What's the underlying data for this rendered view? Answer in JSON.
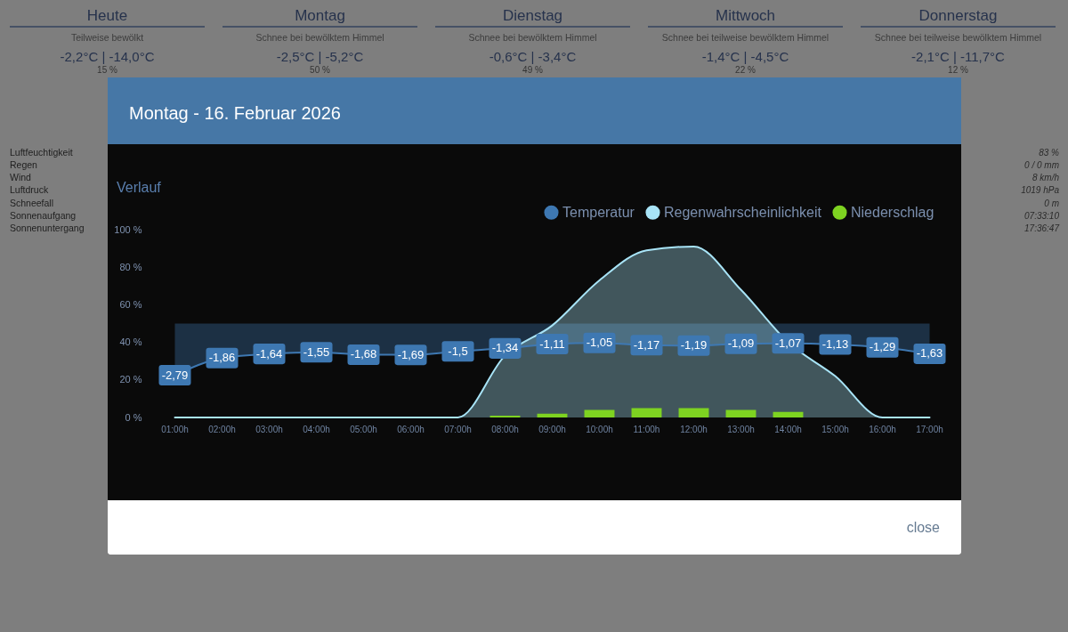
{
  "chart_data": [
    {
      "type": "other",
      "title": "Heute",
      "subtitle": "Teilweise bewölkt",
      "annotations": [
        "-2,2°C | -14,0°C",
        "15 %",
        "Luftfeuchtigkeit",
        "Regen",
        "Wind",
        "Luftdruck",
        "Schneefall",
        "Sonnenaufgang",
        "Sonnenuntergang"
      ]
    },
    {
      "type": "other",
      "title": "Montag",
      "subtitle": "Schnee bei bewölktem Himmel",
      "annotations": [
        "-2,5°C | -5,2°C",
        "50 %"
      ]
    },
    {
      "type": "other",
      "title": "Dienstag",
      "subtitle": "Schnee bei bewölktem Himmel",
      "annotations": [
        "-0,6°C | -3,4°C",
        "49 %"
      ]
    },
    {
      "type": "other",
      "title": "Mittwoch",
      "subtitle": "Schnee bei teilweise bewölktem Himmel",
      "annotations": [
        "-1,4°C | -4,5°C",
        "22 %"
      ]
    },
    {
      "type": "other",
      "title": "Donnerstag",
      "subtitle": "Schnee bei teilweise bewölktem Himmel",
      "annotations": [
        "-2,1°C | -11,7°C",
        "12 %",
        "83 %",
        "0 / 0 mm",
        "8 km/h",
        "1019 hPa",
        "0 m",
        "07:33:10",
        "17:36:47"
      ]
    },
    {
      "type": "area",
      "title": "Montag - 16. Februar 2026",
      "subtitle": "Verlauf",
      "categories": [
        "01:00h",
        "02:00h",
        "03:00h",
        "04:00h",
        "05:00h",
        "06:00h",
        "07:00h",
        "08:00h",
        "09:00h",
        "10:00h",
        "11:00h",
        "12:00h",
        "13:00h",
        "14:00h",
        "15:00h",
        "16:00h",
        "17:00h"
      ],
      "series": [
        {
          "name": "Temperatur",
          "type": "area",
          "axis": "y2",
          "color": "#3e78b2",
          "values": [
            -2.79,
            -1.86,
            -1.64,
            -1.55,
            -1.68,
            -1.69,
            -1.5,
            -1.34,
            -1.11,
            -1.05,
            -1.17,
            -1.19,
            -1.09,
            -1.07,
            -1.13,
            -1.29,
            -1.63
          ],
          "value_labels": [
            "-2,79",
            "-1,86",
            "-1,64",
            "-1,55",
            "-1,68",
            "-1,69",
            "-1,5",
            "-1,34",
            "-1,11",
            "-1,05",
            "-1,17",
            "-1,19",
            "-1,09",
            "-1,07",
            "-1,13",
            "-1,29",
            "-1,63"
          ]
        },
        {
          "name": "Regenwahrscheinlichkeit",
          "type": "area",
          "color": "#a8e4f7",
          "values": [
            0,
            0,
            0,
            0,
            0,
            0,
            0,
            33,
            49,
            73,
            89,
            91,
            68,
            40,
            22,
            0,
            0
          ]
        },
        {
          "name": "Niederschlag",
          "type": "bar",
          "color": "#7ed321",
          "values": [
            null,
            null,
            null,
            null,
            null,
            null,
            null,
            1,
            2,
            4,
            5,
            5,
            4,
            3,
            null,
            null,
            null
          ]
        }
      ],
      "ylim": [
        0,
        100
      ],
      "yticks": [
        {
          "value": 0,
          "label": "0 %"
        },
        {
          "value": 20,
          "label": "20 %"
        },
        {
          "value": 40,
          "label": "40 %"
        },
        {
          "value": 60,
          "label": "60 %"
        },
        {
          "value": 80,
          "label": "80 %"
        },
        {
          "value": 100,
          "label": "100 %"
        }
      ],
      "legend": "top right",
      "annotations": [
        "close"
      ]
    }
  ]
}
